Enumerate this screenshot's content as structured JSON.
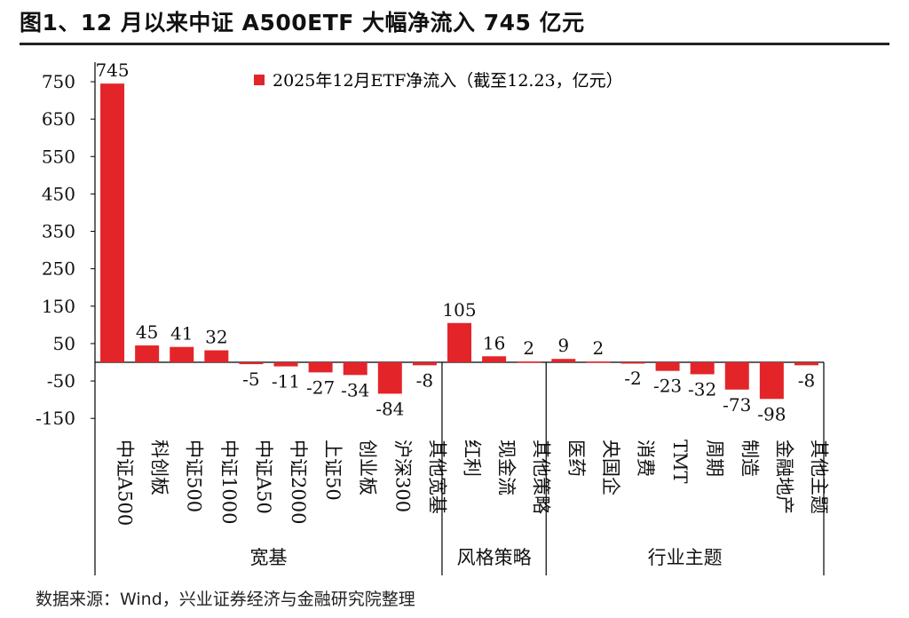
{
  "title": "图1、12 月以来中证 A500ETF 大幅净流入 745 亿元",
  "source": "数据来源：Wind，兴业证券经济与金融研究院整理",
  "colors": {
    "bar": "#E3252A",
    "axis": "#000000"
  },
  "chart_data": {
    "type": "bar",
    "legend": "2025年12月ETF净流入（截至12.23，亿元）",
    "legend_position": "top-center",
    "grid": false,
    "yticks": [
      750,
      650,
      550,
      450,
      350,
      250,
      150,
      50,
      -50,
      -150
    ],
    "ylim": [
      -150,
      775
    ],
    "categories": [
      "中证A500",
      "科创板",
      "中证500",
      "中证1000",
      "中证A50",
      "中证2000",
      "上证50",
      "创业板",
      "沪深300",
      "其他宽基",
      "红利",
      "现金流",
      "其他策略",
      "医药",
      "央国企",
      "消费",
      "TMT",
      "周期",
      "制造",
      "金融地产",
      "其他主题"
    ],
    "values": [
      745,
      45,
      41,
      32,
      -5,
      -11,
      -27,
      -34,
      -84,
      -8,
      105,
      16,
      2,
      9,
      2,
      -2,
      -23,
      -32,
      -73,
      -98,
      -8
    ],
    "groups": [
      {
        "label": "宽基",
        "count": 10
      },
      {
        "label": "风格策略",
        "count": 3
      },
      {
        "label": "行业主题",
        "count": 8
      }
    ]
  }
}
